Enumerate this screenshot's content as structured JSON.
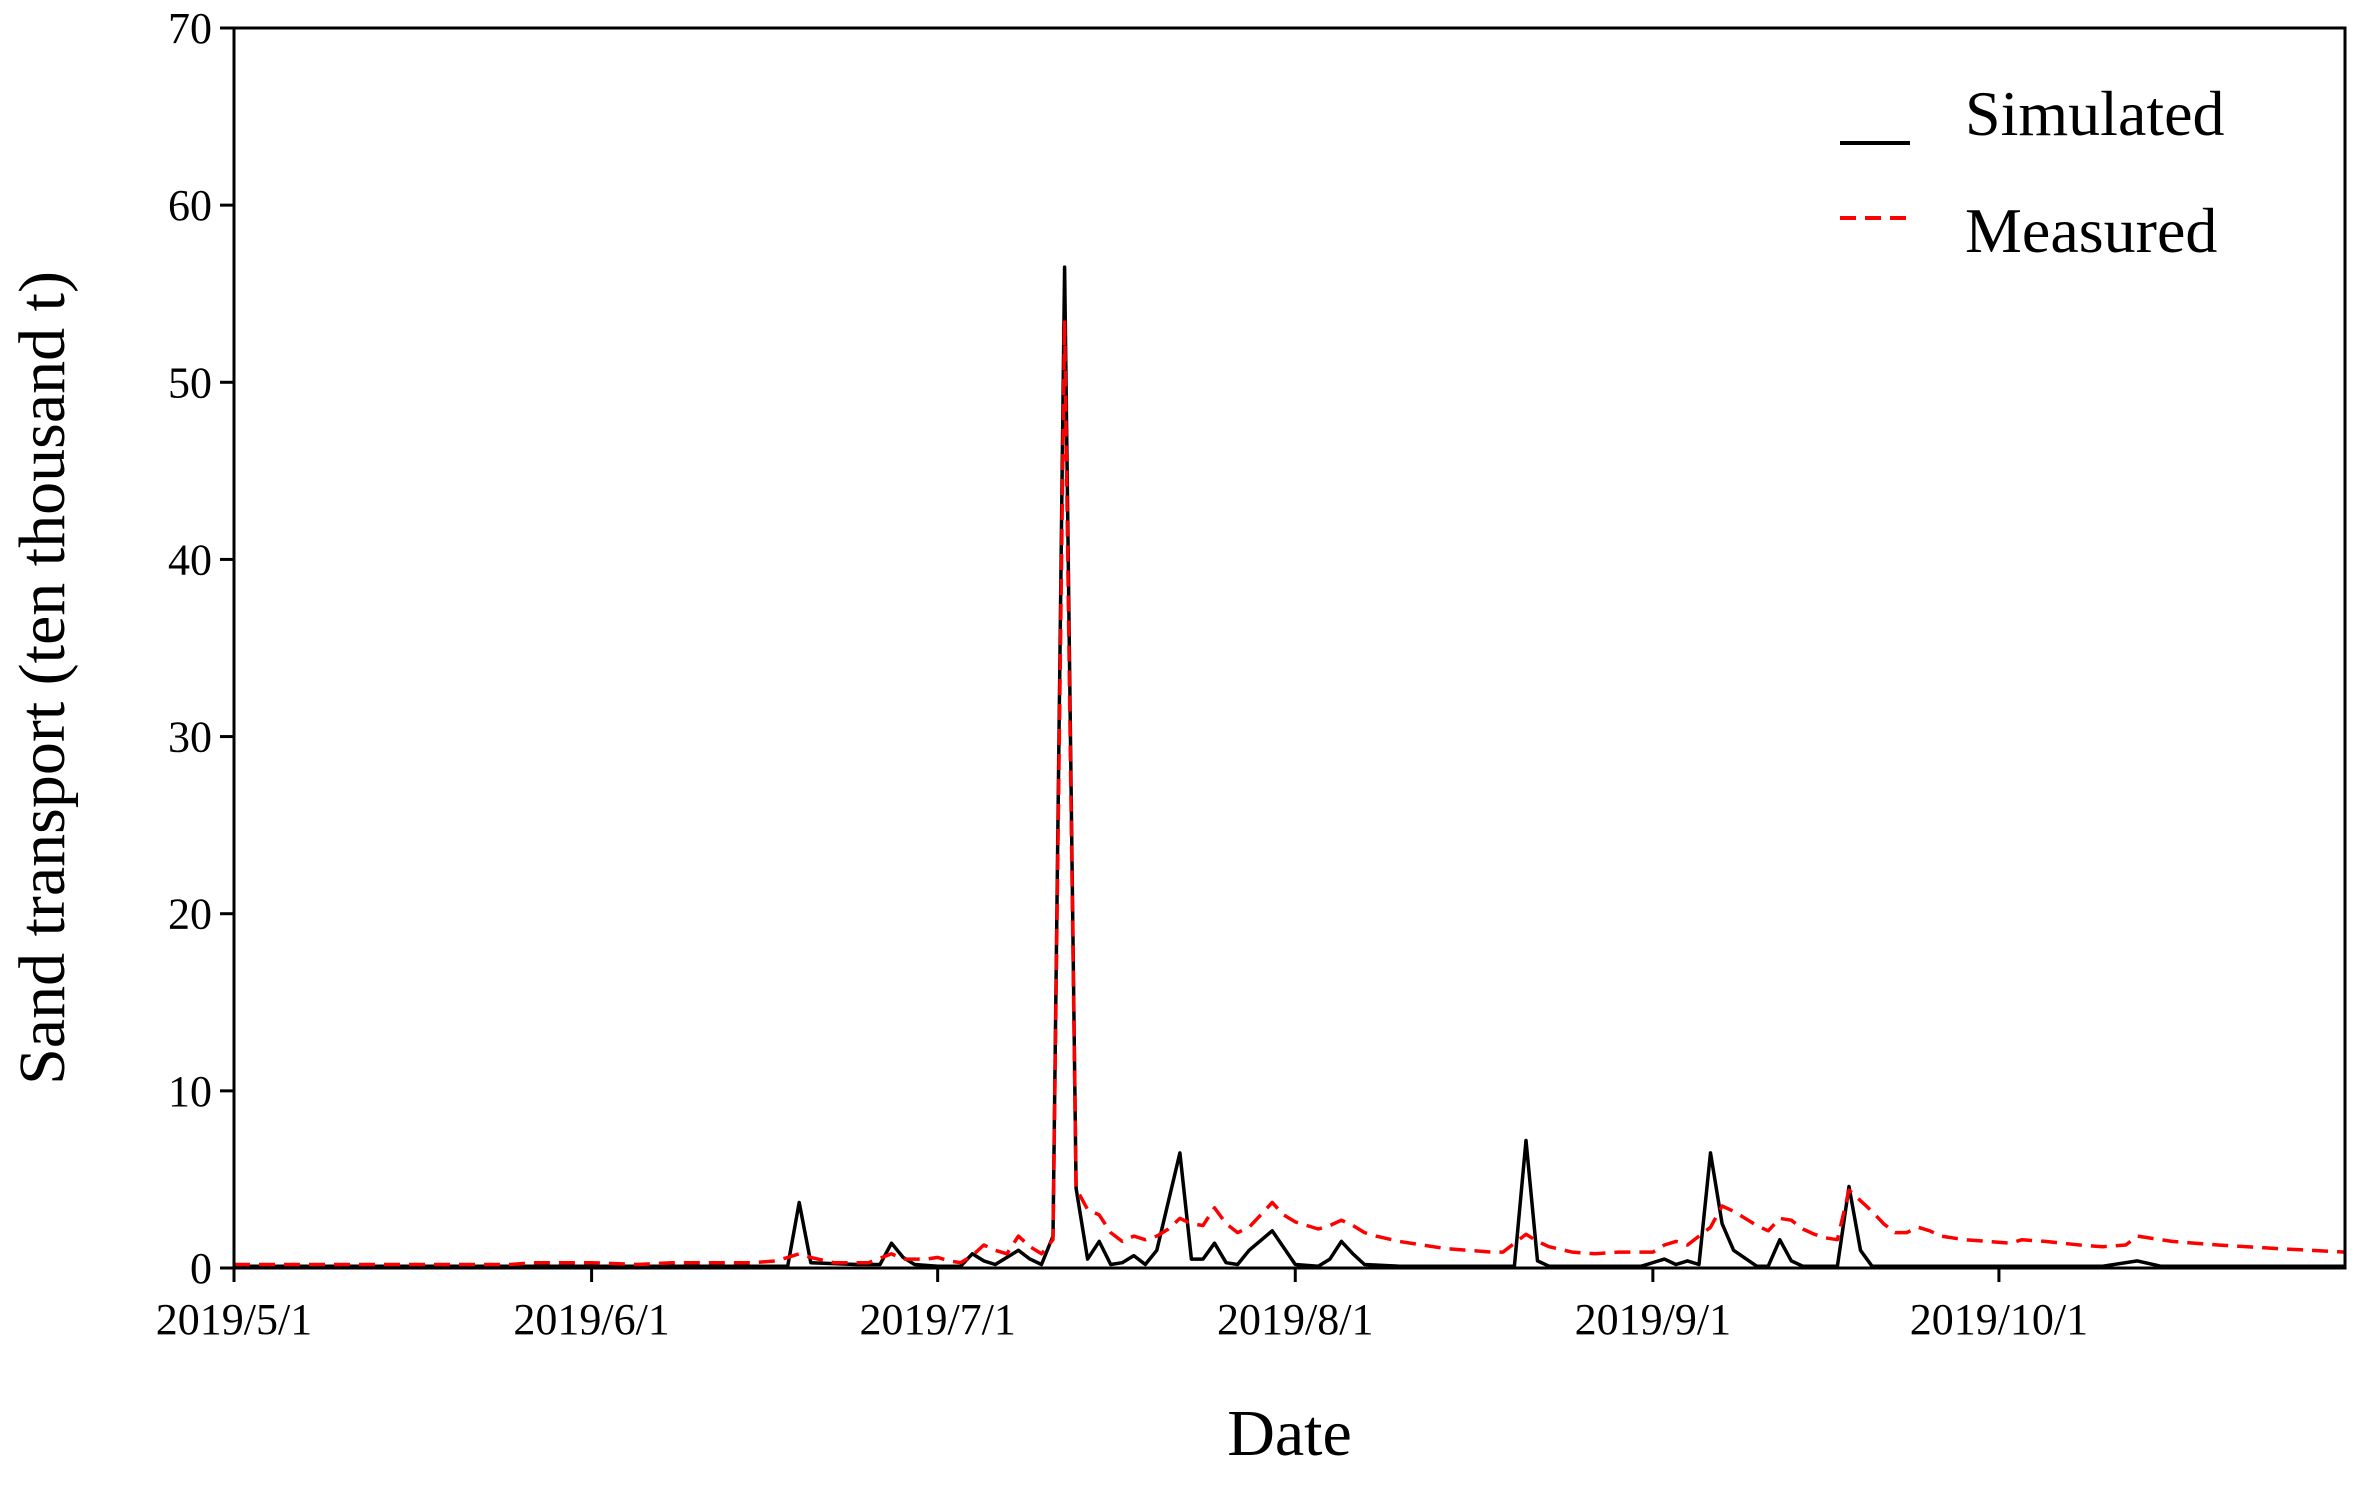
{
  "chart_data": {
    "type": "line",
    "xlabel": "Date",
    "ylabel": "Sand transport (ten thousand t)",
    "ylim": [
      0,
      70
    ],
    "xlim": [
      "2019-05-01",
      "2019-10-31"
    ],
    "x_ticks": [
      {
        "date": "2019-05-01",
        "label": "2019/5/1"
      },
      {
        "date": "2019-06-01",
        "label": "2019/6/1"
      },
      {
        "date": "2019-07-01",
        "label": "2019/7/1"
      },
      {
        "date": "2019-08-01",
        "label": "2019/8/1"
      },
      {
        "date": "2019-09-01",
        "label": "2019/9/1"
      },
      {
        "date": "2019-10-01",
        "label": "2019/10/1"
      }
    ],
    "y_ticks": [
      0,
      10,
      20,
      30,
      40,
      50,
      60,
      70
    ],
    "grid": false,
    "legend_position": "top-right",
    "series": [
      {
        "name": "Simulated",
        "color": "#000000",
        "style": "solid",
        "points": [
          [
            "2019-05-01",
            0.1
          ],
          [
            "2019-05-15",
            0.1
          ],
          [
            "2019-06-01",
            0.1
          ],
          [
            "2019-06-15",
            0.1
          ],
          [
            "2019-06-18",
            0.1
          ],
          [
            "2019-06-19",
            3.7
          ],
          [
            "2019-06-20",
            0.3
          ],
          [
            "2019-06-24",
            0.2
          ],
          [
            "2019-06-26",
            0.2
          ],
          [
            "2019-06-27",
            1.4
          ],
          [
            "2019-06-28",
            0.6
          ],
          [
            "2019-06-29",
            0.2
          ],
          [
            "2019-07-01",
            0.1
          ],
          [
            "2019-07-03",
            0.1
          ],
          [
            "2019-07-04",
            0.8
          ],
          [
            "2019-07-05",
            0.4
          ],
          [
            "2019-07-06",
            0.2
          ],
          [
            "2019-07-08",
            1.0
          ],
          [
            "2019-07-09",
            0.5
          ],
          [
            "2019-07-10",
            0.2
          ],
          [
            "2019-07-11",
            1.8
          ],
          [
            "2019-07-12",
            56.5
          ],
          [
            "2019-07-13",
            4.5
          ],
          [
            "2019-07-14",
            0.5
          ],
          [
            "2019-07-15",
            1.5
          ],
          [
            "2019-07-16",
            0.2
          ],
          [
            "2019-07-17",
            0.3
          ],
          [
            "2019-07-18",
            0.7
          ],
          [
            "2019-07-19",
            0.2
          ],
          [
            "2019-07-20",
            1.0
          ],
          [
            "2019-07-22",
            6.5
          ],
          [
            "2019-07-23",
            0.5
          ],
          [
            "2019-07-24",
            0.5
          ],
          [
            "2019-07-25",
            1.4
          ],
          [
            "2019-07-26",
            0.3
          ],
          [
            "2019-07-27",
            0.2
          ],
          [
            "2019-07-28",
            1.0
          ],
          [
            "2019-07-30",
            2.1
          ],
          [
            "2019-08-01",
            0.2
          ],
          [
            "2019-08-03",
            0.1
          ],
          [
            "2019-08-04",
            0.5
          ],
          [
            "2019-08-05",
            1.5
          ],
          [
            "2019-08-06",
            0.8
          ],
          [
            "2019-08-07",
            0.2
          ],
          [
            "2019-08-10",
            0.1
          ],
          [
            "2019-08-20",
            0.1
          ],
          [
            "2019-08-21",
            7.2
          ],
          [
            "2019-08-22",
            0.4
          ],
          [
            "2019-08-23",
            0.1
          ],
          [
            "2019-08-31",
            0.1
          ],
          [
            "2019-09-02",
            0.5
          ],
          [
            "2019-09-03",
            0.2
          ],
          [
            "2019-09-04",
            0.4
          ],
          [
            "2019-09-05",
            0.2
          ],
          [
            "2019-09-06",
            6.5
          ],
          [
            "2019-09-07",
            2.5
          ],
          [
            "2019-09-08",
            1.0
          ],
          [
            "2019-09-10",
            0.1
          ],
          [
            "2019-09-11",
            0.1
          ],
          [
            "2019-09-12",
            1.6
          ],
          [
            "2019-09-13",
            0.4
          ],
          [
            "2019-09-14",
            0.1
          ],
          [
            "2019-09-17",
            0.1
          ],
          [
            "2019-09-18",
            4.6
          ],
          [
            "2019-09-19",
            1.0
          ],
          [
            "2019-09-20",
            0.1
          ],
          [
            "2019-10-10",
            0.1
          ],
          [
            "2019-10-13",
            0.4
          ],
          [
            "2019-10-15",
            0.1
          ],
          [
            "2019-10-31",
            0.1
          ]
        ]
      },
      {
        "name": "Measured",
        "color": "#ff0000",
        "style": "dashed",
        "points": [
          [
            "2019-05-01",
            0.2
          ],
          [
            "2019-05-25",
            0.2
          ],
          [
            "2019-05-27",
            0.3
          ],
          [
            "2019-06-01",
            0.3
          ],
          [
            "2019-06-05",
            0.2
          ],
          [
            "2019-06-08",
            0.3
          ],
          [
            "2019-06-15",
            0.3
          ],
          [
            "2019-06-17",
            0.4
          ],
          [
            "2019-06-18",
            0.6
          ],
          [
            "2019-06-19",
            0.8
          ],
          [
            "2019-06-20",
            0.6
          ],
          [
            "2019-06-22",
            0.3
          ],
          [
            "2019-06-25",
            0.3
          ],
          [
            "2019-06-27",
            0.8
          ],
          [
            "2019-06-28",
            0.5
          ],
          [
            "2019-06-30",
            0.5
          ],
          [
            "2019-07-01",
            0.6
          ],
          [
            "2019-07-02",
            0.4
          ],
          [
            "2019-07-03",
            0.3
          ],
          [
            "2019-07-04",
            0.7
          ],
          [
            "2019-07-05",
            1.3
          ],
          [
            "2019-07-06",
            1.0
          ],
          [
            "2019-07-07",
            0.8
          ],
          [
            "2019-07-08",
            1.8
          ],
          [
            "2019-07-09",
            1.2
          ],
          [
            "2019-07-10",
            0.8
          ],
          [
            "2019-07-11",
            1.6
          ],
          [
            "2019-07-12",
            53.5
          ],
          [
            "2019-07-13",
            4.5
          ],
          [
            "2019-07-14",
            3.3
          ],
          [
            "2019-07-15",
            3.0
          ],
          [
            "2019-07-16",
            2.0
          ],
          [
            "2019-07-17",
            1.5
          ],
          [
            "2019-07-18",
            1.8
          ],
          [
            "2019-07-19",
            1.6
          ],
          [
            "2019-07-20",
            1.8
          ],
          [
            "2019-07-21",
            2.2
          ],
          [
            "2019-07-22",
            2.8
          ],
          [
            "2019-07-23",
            2.5
          ],
          [
            "2019-07-24",
            2.4
          ],
          [
            "2019-07-25",
            3.4
          ],
          [
            "2019-07-26",
            2.5
          ],
          [
            "2019-07-27",
            2.0
          ],
          [
            "2019-07-28",
            2.3
          ],
          [
            "2019-07-29",
            3.0
          ],
          [
            "2019-07-30",
            3.7
          ],
          [
            "2019-07-31",
            3.0
          ],
          [
            "2019-08-01",
            2.6
          ],
          [
            "2019-08-02",
            2.4
          ],
          [
            "2019-08-03",
            2.2
          ],
          [
            "2019-08-04",
            2.4
          ],
          [
            "2019-08-05",
            2.7
          ],
          [
            "2019-08-06",
            2.4
          ],
          [
            "2019-08-07",
            2.0
          ],
          [
            "2019-08-08",
            1.8
          ],
          [
            "2019-08-10",
            1.5
          ],
          [
            "2019-08-12",
            1.3
          ],
          [
            "2019-08-14",
            1.1
          ],
          [
            "2019-08-16",
            1.0
          ],
          [
            "2019-08-18",
            0.9
          ],
          [
            "2019-08-19",
            0.9
          ],
          [
            "2019-08-20",
            1.4
          ],
          [
            "2019-08-21",
            1.9
          ],
          [
            "2019-08-22",
            1.5
          ],
          [
            "2019-08-23",
            1.2
          ],
          [
            "2019-08-25",
            0.9
          ],
          [
            "2019-08-27",
            0.8
          ],
          [
            "2019-08-29",
            0.9
          ],
          [
            "2019-08-31",
            0.9
          ],
          [
            "2019-09-01",
            0.9
          ],
          [
            "2019-09-02",
            1.3
          ],
          [
            "2019-09-03",
            1.5
          ],
          [
            "2019-09-04",
            1.3
          ],
          [
            "2019-09-05",
            1.8
          ],
          [
            "2019-09-06",
            2.3
          ],
          [
            "2019-09-07",
            3.5
          ],
          [
            "2019-09-08",
            3.2
          ],
          [
            "2019-09-09",
            2.8
          ],
          [
            "2019-09-10",
            2.4
          ],
          [
            "2019-09-11",
            2.1
          ],
          [
            "2019-09-12",
            2.8
          ],
          [
            "2019-09-13",
            2.7
          ],
          [
            "2019-09-14",
            2.2
          ],
          [
            "2019-09-15",
            1.9
          ],
          [
            "2019-09-16",
            1.7
          ],
          [
            "2019-09-17",
            1.6
          ],
          [
            "2019-09-18",
            4.4
          ],
          [
            "2019-09-19",
            3.8
          ],
          [
            "2019-09-20",
            3.2
          ],
          [
            "2019-09-21",
            2.5
          ],
          [
            "2019-09-22",
            2.0
          ],
          [
            "2019-09-23",
            2.0
          ],
          [
            "2019-09-24",
            2.3
          ],
          [
            "2019-09-25",
            2.1
          ],
          [
            "2019-09-26",
            1.8
          ],
          [
            "2019-09-28",
            1.6
          ],
          [
            "2019-09-30",
            1.5
          ],
          [
            "2019-10-02",
            1.4
          ],
          [
            "2019-10-03",
            1.6
          ],
          [
            "2019-10-05",
            1.5
          ],
          [
            "2019-10-08",
            1.3
          ],
          [
            "2019-10-10",
            1.2
          ],
          [
            "2019-10-12",
            1.3
          ],
          [
            "2019-10-13",
            1.8
          ],
          [
            "2019-10-14",
            1.7
          ],
          [
            "2019-10-16",
            1.5
          ],
          [
            "2019-10-20",
            1.3
          ],
          [
            "2019-10-25",
            1.1
          ],
          [
            "2019-10-28",
            1.0
          ],
          [
            "2019-10-31",
            0.9
          ]
        ]
      }
    ]
  }
}
